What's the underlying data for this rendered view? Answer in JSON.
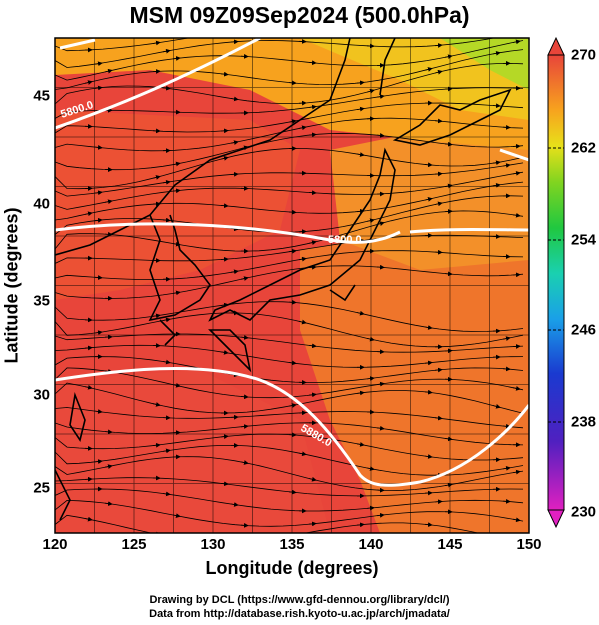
{
  "title": "MSM 09Z09Sep2024 (500.0hPa)",
  "xlabel": "Longitude (degrees)",
  "ylabel": "Latitude  (degrees)",
  "x_ticks": [
    "120",
    "125",
    "130",
    "135",
    "140",
    "145",
    "150"
  ],
  "y_ticks": [
    "25",
    "30",
    "35",
    "40",
    "45"
  ],
  "colorbar_ticks": [
    "270",
    "262",
    "254",
    "246",
    "238",
    "230"
  ],
  "contour_labels": [
    "5800.0",
    "5800.0",
    "5880.0"
  ],
  "credits": {
    "line1": "Drawing by DCL (https://www.gfd-dennou.org/library/dcl/)",
    "line2": "Data from http://database.rish.kyoto-u.ac.jp/arch/jmadata/"
  },
  "map": {
    "lon_range": [
      120,
      150
    ],
    "lat_range": [
      22.5,
      47.5
    ],
    "grid_lon": [
      120,
      122.5,
      125,
      127.5,
      130,
      132.5,
      135,
      137.5,
      140,
      142.5,
      145,
      147.5,
      150
    ],
    "grid_lat": [
      22.5,
      25,
      27.5,
      30,
      32.5,
      35,
      37.5,
      40,
      42.5,
      45,
      47.5
    ],
    "colorbar_range": [
      230,
      270
    ]
  },
  "colors": {
    "hot": "#e8453a",
    "warm": "#f07a2a",
    "orange": "#f7a21e",
    "yellow": "#e8dd1a",
    "green": "#7cd42a",
    "contour": "#ffffff",
    "coast": "#000000"
  }
}
